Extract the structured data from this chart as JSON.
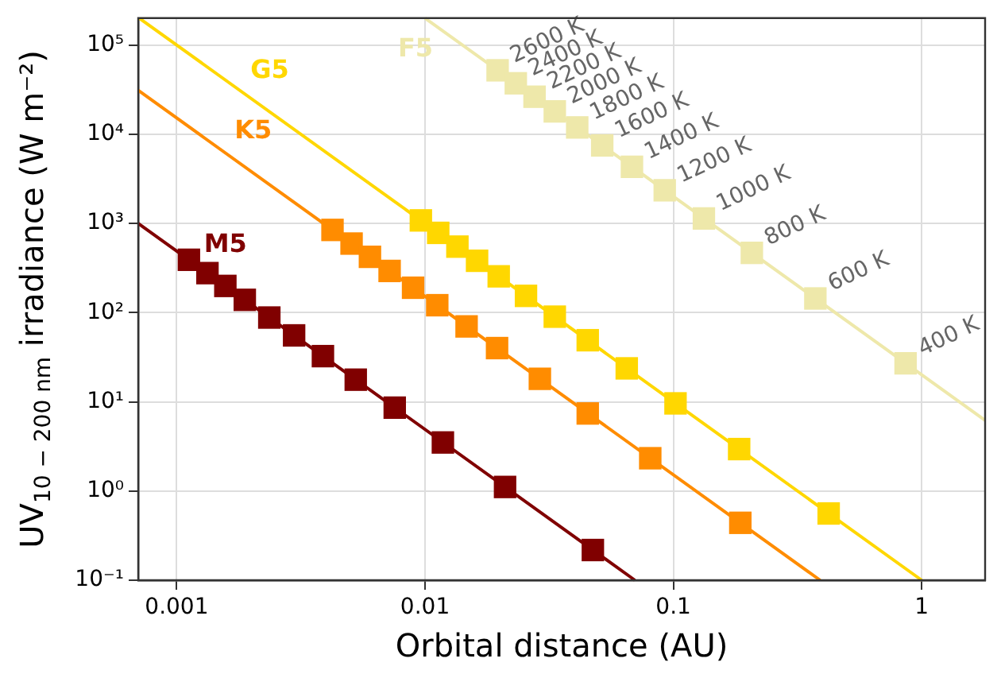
{
  "chart_data": {
    "type": "line",
    "xlabel": "Orbital distance (AU)",
    "ylabel": "UV$_{10 − 200 nm}$ irradiance (W m⁻²)",
    "log": "xy",
    "grid": true,
    "legend": false,
    "xlim": [
      0.0007,
      1.8
    ],
    "xticks": [
      0.001,
      0.01,
      0.1,
      1
    ],
    "ylim": [
      0.1,
      200000
    ],
    "yticks": [
      {
        "value": 0.1,
        "label": "10⁻¹"
      },
      {
        "value": 1,
        "label": "10⁰"
      },
      {
        "value": 10,
        "label": "10¹"
      },
      {
        "value": 100,
        "label": "10²"
      },
      {
        "value": 1000,
        "label": "10³"
      },
      {
        "value": 10000,
        "label": "10⁴"
      },
      {
        "value": 100000,
        "label": "10⁵"
      }
    ],
    "series": [
      {
        "name": "F5",
        "marker": "none",
        "color": "#eee8aa",
        "x": [
          0.01,
          1.8
        ],
        "values": [
          200000,
          6.2
        ]
      },
      {
        "type": "scatter",
        "marker": "square",
        "color": "#eee8aa",
        "x": [
          0.0196,
          0.0232,
          0.0276,
          0.0333,
          0.041,
          0.0517,
          0.0681,
          0.0923,
          0.1327,
          0.207,
          0.373,
          0.861
        ],
        "values": [
          52000,
          37200,
          26300,
          18000,
          11900,
          7480,
          4310,
          2350,
          1136,
          467,
          144,
          27
        ]
      },
      {
        "name": "G5",
        "marker": "none",
        "color": "#ffd700",
        "x": [
          0.00071,
          1
        ],
        "values": [
          198000,
          0.1
        ]
      },
      {
        "type": "scatter",
        "marker": "square",
        "color": "#ffd700",
        "x": [
          0.00962,
          0.0113,
          0.0135,
          0.0162,
          0.0198,
          0.0255,
          0.0333,
          0.0452,
          0.0649,
          0.102,
          0.184,
          0.422
        ],
        "values": [
          1080,
          783,
          549,
          381,
          255,
          154,
          90,
          49,
          23.7,
          9.6,
          2.95,
          0.56
        ]
      },
      {
        "name": "K5",
        "marker": "none",
        "color": "#ff8c00",
        "x": [
          0.0007,
          0.39
        ],
        "values": [
          31000,
          0.1
        ]
      },
      {
        "type": "scatter",
        "marker": "square",
        "color": "#ff8c00",
        "x": [
          0.00424,
          0.00506,
          0.006,
          0.0072,
          0.00895,
          0.0112,
          0.0147,
          0.0195,
          0.029,
          0.0452,
          0.0807,
          0.186
        ],
        "values": [
          845,
          594,
          422,
          293,
          190,
          121,
          70,
          40,
          18.1,
          7.4,
          2.33,
          0.44
        ]
      },
      {
        "name": "M5",
        "marker": "none",
        "color": "#800000",
        "x": [
          0.0007,
          0.07
        ],
        "values": [
          1000,
          0.1
        ]
      },
      {
        "type": "scatter",
        "marker": "square",
        "color": "#800000",
        "x": [
          0.00112,
          0.00133,
          0.00157,
          0.00188,
          0.00236,
          0.00297,
          0.00388,
          0.00526,
          0.00755,
          0.0118,
          0.021,
          0.0474
        ],
        "values": [
          391,
          277,
          199,
          139,
          88,
          55.5,
          32.5,
          17.7,
          8.6,
          3.5,
          1.11,
          0.218
        ]
      }
    ],
    "annotations": [
      {
        "text": "2600 K",
        "x": 0.0196,
        "y": 52000
      },
      {
        "text": "2400 K",
        "x": 0.0232,
        "y": 37200
      },
      {
        "text": "2200 K",
        "x": 0.0276,
        "y": 26300
      },
      {
        "text": "2000 K",
        "x": 0.0333,
        "y": 18000
      },
      {
        "text": "1800 K",
        "x": 0.041,
        "y": 11900
      },
      {
        "text": "1600 K",
        "x": 0.0517,
        "y": 7480
      },
      {
        "text": "1400 K",
        "x": 0.0681,
        "y": 4310
      },
      {
        "text": "1200 K",
        "x": 0.0923,
        "y": 2350
      },
      {
        "text": "1000 K",
        "x": 0.1327,
        "y": 1136
      },
      {
        "text": "800 K",
        "x": 0.207,
        "y": 467
      },
      {
        "text": "600 K",
        "x": 0.373,
        "y": 144
      },
      {
        "text": "400 K",
        "x": 0.861,
        "y": 27
      }
    ]
  }
}
